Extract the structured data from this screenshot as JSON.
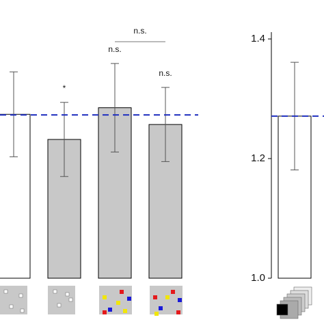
{
  "chart_data": [
    {
      "type": "bar",
      "categories": [
        null,
        null,
        null,
        null
      ],
      "values": [
        1.274,
        1.232,
        1.285,
        1.257
      ],
      "errors": [
        0.071,
        0.062,
        0.074,
        0.062
      ],
      "colors": [
        "#ffffff",
        "#c8c8c8",
        "#c8c8c8",
        "#c8c8c8"
      ],
      "reference_line": 1.273,
      "reference_color": "#1f2fbf",
      "ylim": [
        1.0,
        1.4
      ],
      "annotations": [
        {
          "text": "*",
          "category": 1
        },
        {
          "text": "n.s.",
          "category": 2
        },
        {
          "text": "n.s.",
          "category": 3
        }
      ],
      "brackets": [
        {
          "text": "n.s.",
          "from": 2,
          "to": 3
        }
      ]
    },
    {
      "type": "bar",
      "categories": [
        null
      ],
      "values": [
        1.271
      ],
      "errors": [
        0.09
      ],
      "colors": [
        "#ffffff"
      ],
      "reference_line": 1.271,
      "reference_color": "#1f2fbf",
      "ylim": [
        1.0,
        1.4
      ],
      "yticks": [
        {
          "value": 1.0,
          "label": "1.0"
        },
        1.2,
        1.4
      ]
    }
  ]
}
